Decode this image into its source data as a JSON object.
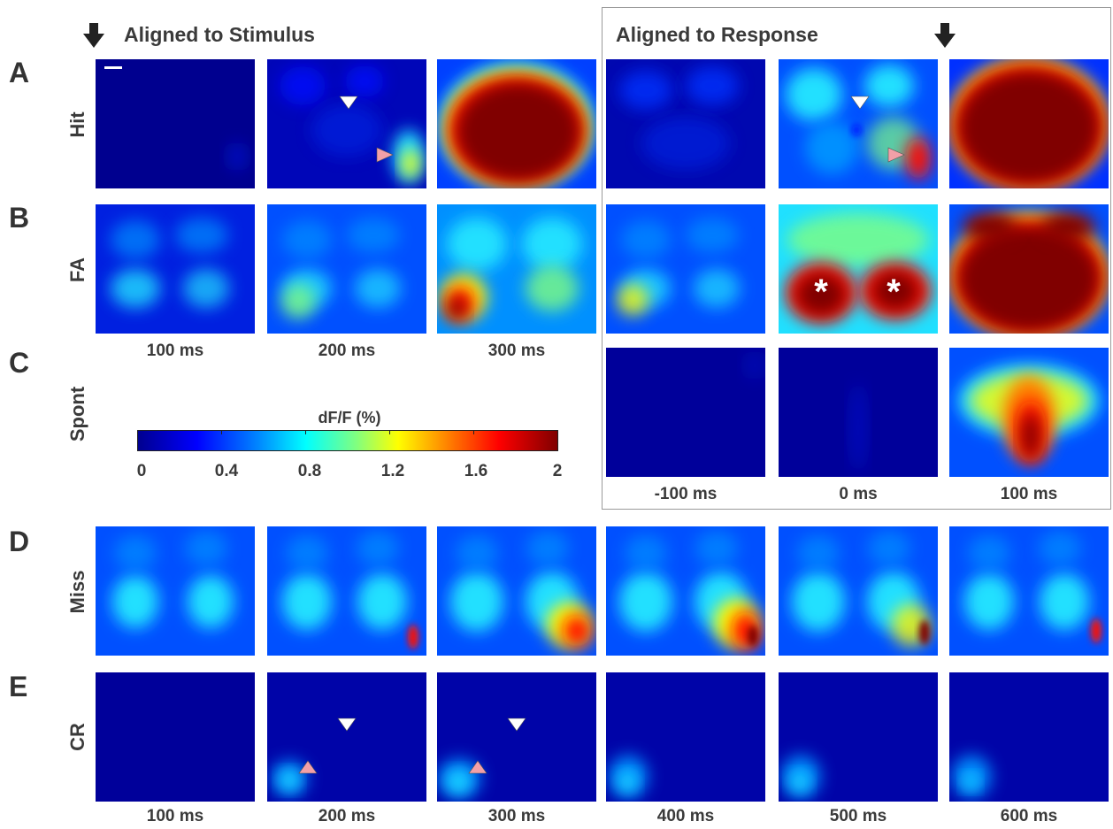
{
  "headers": {
    "stimulus": "Aligned to Stimulus",
    "response": "Aligned to Response"
  },
  "panels": [
    "A",
    "B",
    "C",
    "D",
    "E"
  ],
  "row_labels": {
    "hit": "Hit",
    "fa": "FA",
    "spont": "Spont",
    "miss": "Miss",
    "cr": "CR"
  },
  "stim_times": [
    "100 ms",
    "200 ms",
    "300 ms"
  ],
  "resp_times": [
    "-100 ms",
    "0 ms",
    "100 ms"
  ],
  "bottom_times": [
    "100 ms",
    "200 ms",
    "300 ms",
    "400 ms",
    "500 ms",
    "600 ms"
  ],
  "colorbar": {
    "title": "dF/F (%)",
    "ticks": [
      "0",
      "0.4",
      "0.8",
      "1.2",
      "1.6",
      "2"
    ],
    "range": [
      0,
      2
    ],
    "colormap": "jet"
  },
  "markers": {
    "asterisk": "*",
    "white_arrowhead_color": "#ffffff",
    "pink_arrowhead_color": "#f2a0a8"
  },
  "colors": {
    "dark_blue": "#00008f",
    "dark_red": "#800000"
  }
}
